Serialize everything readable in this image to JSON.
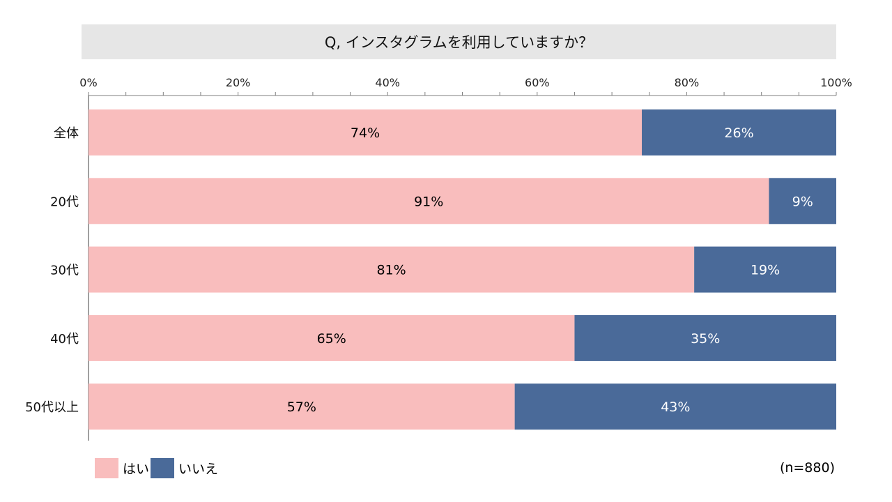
{
  "chart_data": {
    "type": "bar",
    "orientation": "horizontal",
    "stacked": true,
    "title": "Q, インスタグラムを利用していますか？",
    "categories": [
      "全体",
      "20代",
      "30代",
      "40代",
      "50代以上"
    ],
    "series": [
      {
        "name": "はい",
        "color": "#f9bdbd",
        "text_color": "#000000",
        "values": [
          74,
          91,
          81,
          65,
          57
        ],
        "labels": [
          "74%",
          "91%",
          "81%",
          "65%",
          "57%"
        ]
      },
      {
        "name": "いいえ",
        "color": "#4a6a99",
        "text_color": "#ffffff",
        "values": [
          26,
          9,
          19,
          35,
          43
        ],
        "labels": [
          "26%",
          "9%",
          "19%",
          "35%",
          "43%"
        ]
      }
    ],
    "xlim": [
      0,
      100
    ],
    "x_ticks": [
      0,
      20,
      40,
      60,
      80,
      100
    ],
    "x_tick_labels": [
      "0%",
      "20%",
      "40%",
      "60%",
      "80%",
      "100%"
    ],
    "x_axis_position": "top",
    "minor_tick_step": 5,
    "grid": false,
    "legend_placement": "bottom-left",
    "note": "(n=880)"
  }
}
